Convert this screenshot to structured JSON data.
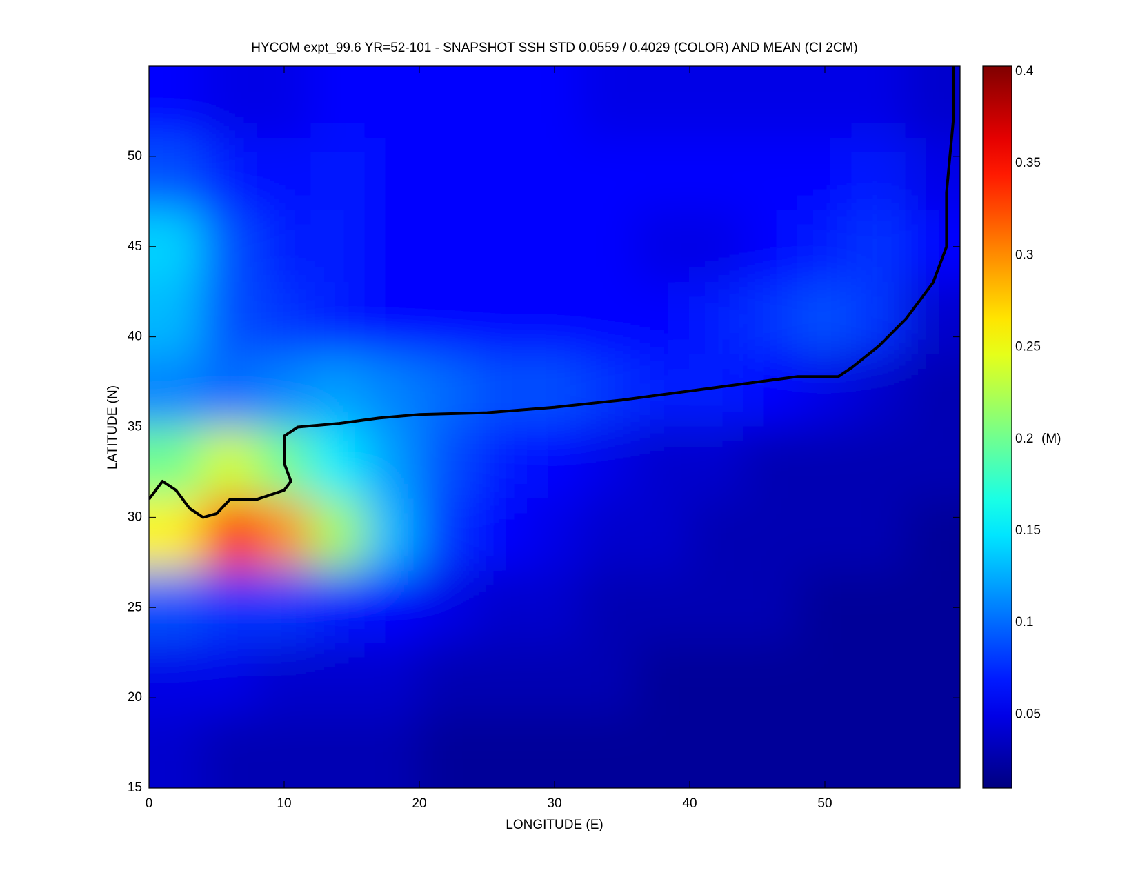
{
  "chart_data": {
    "type": "heatmap",
    "title": "HYCOM expt_99.6 YR=52-101 - SNAPSHOT SSH STD 0.0559 / 0.4029 (COLOR) AND MEAN (CI 2CM)",
    "xlabel": "LONGITUDE (E)",
    "ylabel": "LATITUDE (N)",
    "xlim": [
      0,
      60
    ],
    "ylim": [
      15,
      55
    ],
    "xticks": [
      0,
      10,
      20,
      30,
      40,
      50
    ],
    "yticks": [
      15,
      20,
      25,
      30,
      35,
      40,
      45,
      50
    ],
    "x": [
      2,
      6,
      10,
      14,
      18,
      22,
      26,
      30,
      34,
      38,
      42,
      46,
      50,
      54,
      58
    ],
    "y": [
      53,
      49,
      45,
      41,
      37,
      33,
      29,
      25,
      21,
      17
    ],
    "z": [
      [
        0.06,
        0.05,
        0.05,
        0.06,
        0.06,
        0.06,
        0.06,
        0.06,
        0.05,
        0.05,
        0.05,
        0.05,
        0.05,
        0.05,
        0.04
      ],
      [
        0.09,
        0.07,
        0.06,
        0.07,
        0.06,
        0.06,
        0.06,
        0.06,
        0.06,
        0.06,
        0.06,
        0.06,
        0.06,
        0.07,
        0.05
      ],
      [
        0.14,
        0.09,
        0.07,
        0.07,
        0.06,
        0.06,
        0.06,
        0.06,
        0.06,
        0.05,
        0.05,
        0.06,
        0.07,
        0.08,
        0.06
      ],
      [
        0.13,
        0.09,
        0.08,
        0.07,
        0.06,
        0.06,
        0.06,
        0.06,
        0.06,
        0.06,
        0.07,
        0.08,
        0.09,
        0.08,
        0.04
      ],
      [
        0.11,
        0.1,
        0.11,
        0.12,
        0.11,
        0.1,
        0.09,
        0.09,
        0.08,
        0.07,
        0.07,
        0.06,
        0.05,
        0.04,
        0.03
      ],
      [
        0.2,
        0.24,
        0.2,
        0.15,
        0.12,
        0.09,
        0.07,
        0.06,
        0.05,
        0.04,
        0.04,
        0.03,
        0.03,
        0.03,
        0.03
      ],
      [
        0.26,
        0.35,
        0.3,
        0.22,
        0.13,
        0.08,
        0.06,
        0.05,
        0.04,
        0.04,
        0.03,
        0.03,
        0.03,
        0.03,
        0.02
      ],
      [
        0.09,
        0.08,
        0.08,
        0.07,
        0.06,
        0.05,
        0.04,
        0.04,
        0.03,
        0.03,
        0.03,
        0.03,
        0.02,
        0.02,
        0.02
      ],
      [
        0.05,
        0.05,
        0.04,
        0.04,
        0.04,
        0.03,
        0.03,
        0.03,
        0.03,
        0.02,
        0.02,
        0.02,
        0.02,
        0.02,
        0.02
      ],
      [
        0.04,
        0.03,
        0.03,
        0.03,
        0.03,
        0.02,
        0.02,
        0.02,
        0.02,
        0.02,
        0.02,
        0.02,
        0.02,
        0.02,
        0.02
      ]
    ],
    "colormap": "jet",
    "clim": [
      0.01,
      0.403
    ],
    "cticks": [
      0.05,
      0.1,
      0.15,
      0.2,
      0.25,
      0.3,
      0.35,
      0.4
    ],
    "cunit": "(M)",
    "front": {
      "color": "#000000",
      "x": [
        0,
        1,
        2,
        3,
        4,
        5,
        6,
        8,
        10,
        10.5,
        10,
        10,
        11,
        14,
        17,
        20,
        25,
        30,
        35,
        40,
        45,
        48,
        51,
        52,
        54,
        56,
        58,
        59,
        59,
        59.5,
        59.5
      ],
      "y": [
        31,
        32,
        31.5,
        30.5,
        30,
        30.2,
        31,
        31,
        31.5,
        32,
        33,
        34.5,
        35,
        35.2,
        35.5,
        35.7,
        35.8,
        36.1,
        36.5,
        37,
        37.5,
        37.8,
        37.8,
        38.3,
        39.5,
        41,
        43,
        45,
        48,
        52,
        55
      ]
    }
  }
}
